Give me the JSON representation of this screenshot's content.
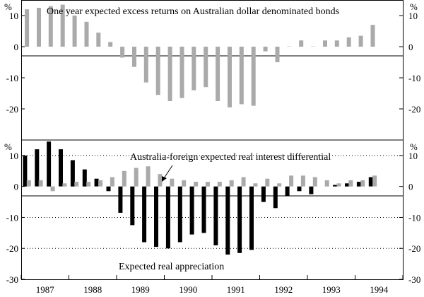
{
  "chart_data": [
    {
      "type": "bar",
      "title": "One year expected excess returns on Australian dollar denominated bonds",
      "ylabel": "%",
      "ylim": [
        -30,
        15
      ],
      "yticks": [
        10,
        0,
        -10,
        -20
      ],
      "grid": false,
      "color": "#aaaaaa",
      "x": [
        1986.62,
        1986.87,
        1987.12,
        1987.37,
        1987.62,
        1987.87,
        1988.12,
        1988.37,
        1988.62,
        1988.87,
        1989.12,
        1989.37,
        1989.62,
        1989.87,
        1990.12,
        1990.37,
        1990.62,
        1990.87,
        1991.12,
        1991.37,
        1991.62,
        1991.87,
        1992.12,
        1992.37,
        1992.62,
        1992.87,
        1993.12,
        1993.37,
        1993.62,
        1993.87,
        1994.12
      ],
      "values": [
        12,
        12.5,
        13,
        13.5,
        10,
        8,
        4.5,
        1.5,
        -3.5,
        -6.5,
        -11.5,
        -15.5,
        -17.5,
        -16.5,
        -14,
        -13,
        -17.5,
        -19.5,
        -18.5,
        -19,
        -1.5,
        -5,
        0.1,
        2,
        0.1,
        2,
        2,
        3,
        3.5,
        7,
        0
      ]
    },
    {
      "type": "bar",
      "ylabel": "%",
      "ylim": [
        -30,
        15
      ],
      "yticks": [
        10,
        0,
        -10,
        -20,
        -30
      ],
      "grid": true,
      "series": [
        {
          "name": "Expected real appreciation",
          "color": "#000000",
          "x": [
            1986.58,
            1986.83,
            1987.08,
            1987.33,
            1987.58,
            1987.83,
            1988.08,
            1988.33,
            1988.58,
            1988.83,
            1989.08,
            1989.33,
            1989.58,
            1989.83,
            1990.08,
            1990.33,
            1990.58,
            1990.83,
            1991.08,
            1991.33,
            1991.58,
            1991.83,
            1992.08,
            1992.33,
            1992.58,
            1992.83,
            1993.08,
            1993.33,
            1993.58,
            1993.83,
            1994.08
          ],
          "values": [
            10,
            12,
            14.5,
            12,
            8.5,
            5.5,
            2.5,
            -1.5,
            -8.5,
            -12.5,
            -18,
            -19.5,
            -20,
            -18,
            -15.5,
            -15,
            -19,
            -22,
            -21.5,
            -20.5,
            -5,
            -7,
            -3,
            -1.5,
            -2.5,
            0,
            0.5,
            1,
            1.5,
            3,
            0
          ]
        },
        {
          "name": "Australia-foreign expected real interest differential",
          "color": "#aaaaaa",
          "x": [
            1986.66,
            1986.91,
            1987.16,
            1987.41,
            1987.66,
            1987.91,
            1988.16,
            1988.41,
            1988.66,
            1988.91,
            1989.16,
            1989.41,
            1989.66,
            1989.91,
            1990.16,
            1990.41,
            1990.66,
            1990.91,
            1991.16,
            1991.41,
            1991.66,
            1991.91,
            1992.16,
            1992.41,
            1992.66,
            1992.91,
            1993.16,
            1993.41,
            1993.66,
            1993.91,
            1994.16
          ],
          "values": [
            2,
            2,
            -1.5,
            1,
            1.5,
            1.5,
            2,
            3,
            5,
            6,
            6.5,
            4,
            2.5,
            2,
            1.5,
            1.5,
            1.5,
            2,
            3,
            1,
            2.5,
            1,
            3.5,
            3.5,
            3,
            2,
            1,
            2,
            2,
            3.5,
            0
          ]
        }
      ]
    }
  ],
  "x_ticks": [
    {
      "label": "1987",
      "value": 1987.0
    },
    {
      "label": "1988",
      "value": 1988.0
    },
    {
      "label": "1989",
      "value": 1989.0
    },
    {
      "label": "1990",
      "value": 1990.0
    },
    {
      "label": "1991",
      "value": 1991.0
    },
    {
      "label": "1992",
      "value": 1992.0
    },
    {
      "label": "1993",
      "value": 1993.0
    },
    {
      "label": "1994",
      "value": 1994.0
    }
  ],
  "x_range": [
    1986.5,
    1994.5
  ],
  "annotations": {
    "top_title": "One year expected excess returns on Australian dollar denominated bonds",
    "interest_label": "Australia-foreign expected real interest differential",
    "appreciation_label": "Expected real appreciation"
  }
}
